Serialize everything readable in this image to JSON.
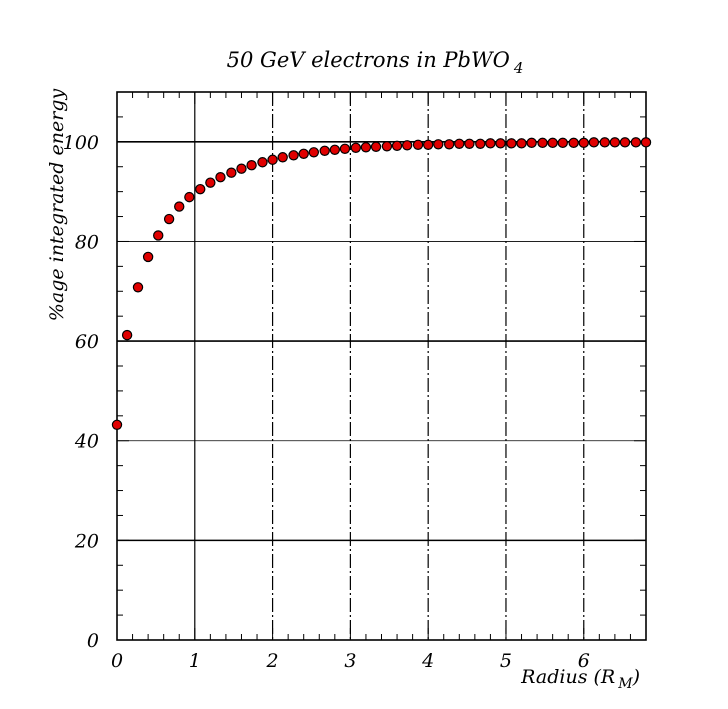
{
  "chart_data": {
    "type": "scatter",
    "title": "50 GeV electrons in PbWO",
    "title_subscript": "4",
    "xlabel": "Radius (R",
    "xlabel_subscript": "M",
    "xlabel_close": ")",
    "ylabel": "%age integrated energy",
    "xlim": [
      0,
      6.8
    ],
    "ylim": [
      0,
      110
    ],
    "x_ticks": [
      "0",
      "1",
      "2",
      "3",
      "4",
      "5",
      "6"
    ],
    "y_ticks": [
      "0",
      "20",
      "40",
      "60",
      "80",
      "100"
    ],
    "grid": true,
    "legend": "none",
    "marker_color": "#e00000",
    "series": [
      {
        "x": [
          0.0,
          0.13,
          0.27,
          0.4,
          0.53,
          0.67,
          0.8,
          0.93,
          1.07,
          1.2,
          1.33,
          1.47,
          1.6,
          1.73,
          1.87,
          2.0,
          2.13,
          2.27,
          2.4,
          2.53,
          2.67,
          2.8,
          2.93,
          3.07,
          3.2,
          3.33,
          3.47,
          3.6,
          3.73,
          3.87,
          4.0,
          4.13,
          4.27,
          4.4,
          4.53,
          4.67,
          4.8,
          4.93,
          5.07,
          5.2,
          5.33,
          5.47,
          5.6,
          5.73,
          5.87,
          6.0,
          6.13,
          6.27,
          6.4,
          6.53,
          6.67,
          6.8
        ],
        "y": [
          43.2,
          61.2,
          70.8,
          76.9,
          81.2,
          84.5,
          87.0,
          88.9,
          90.5,
          91.8,
          92.9,
          93.8,
          94.6,
          95.3,
          95.9,
          96.4,
          96.9,
          97.3,
          97.6,
          97.9,
          98.2,
          98.4,
          98.6,
          98.8,
          98.9,
          99.0,
          99.1,
          99.2,
          99.3,
          99.4,
          99.4,
          99.5,
          99.5,
          99.6,
          99.6,
          99.6,
          99.7,
          99.7,
          99.7,
          99.7,
          99.8,
          99.8,
          99.8,
          99.8,
          99.8,
          99.8,
          99.9,
          99.9,
          99.9,
          99.9,
          99.9,
          99.9
        ]
      }
    ]
  }
}
